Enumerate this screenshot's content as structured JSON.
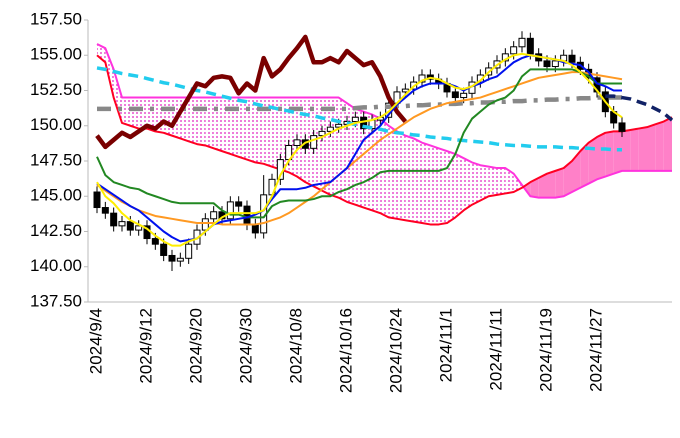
{
  "chart_data": {
    "type": "candlestick",
    "categories": [
      "2024/9/4",
      null,
      null,
      null,
      null,
      null,
      "2024/9/12",
      null,
      null,
      null,
      null,
      null,
      "2024/9/20",
      null,
      null,
      null,
      null,
      null,
      "2024/9/30",
      null,
      null,
      null,
      null,
      null,
      "2024/10/8",
      null,
      null,
      null,
      null,
      null,
      "2024/10/16",
      null,
      null,
      null,
      null,
      null,
      "2024/10/24",
      null,
      null,
      null,
      null,
      null,
      "2024/11/1",
      null,
      null,
      null,
      null,
      null,
      "2024/11/11",
      null,
      null,
      null,
      null,
      null,
      "2024/11/19",
      null,
      null,
      null,
      null,
      null,
      "2024/11/27",
      null,
      null,
      null,
      null,
      null,
      null,
      null,
      null,
      null
    ],
    "open": [
      145.3,
      144.2,
      143.8,
      142.9,
      143.2,
      142.6,
      142.9,
      142.0,
      141.6,
      140.8,
      140.4,
      140.6,
      141.6,
      142.6,
      143.4,
      143.9,
      143.4,
      144.6,
      144.3,
      143.0,
      142.4,
      145.1,
      146.2,
      147.6,
      148.6,
      149.0,
      148.4,
      149.3,
      149.6,
      149.9,
      150.1,
      150.3,
      150.6,
      149.8,
      150.4,
      150.6,
      151.6,
      152.4,
      152.6,
      153.1,
      153.6,
      153.3,
      153.0,
      152.4,
      152.0,
      152.3,
      153.1,
      153.6,
      154.1,
      154.6,
      155.1,
      155.6,
      156.2,
      155.1,
      154.6,
      154.2,
      154.6,
      155.0,
      154.5,
      154.0,
      153.4,
      152.4,
      151.0,
      150.2,
      null,
      null,
      null,
      null,
      null,
      null
    ],
    "high": [
      145.7,
      144.6,
      144.2,
      143.6,
      143.6,
      143.3,
      143.3,
      142.4,
      142.0,
      141.2,
      141.0,
      142.0,
      143.0,
      143.8,
      144.3,
      144.3,
      145.0,
      145.0,
      144.7,
      143.4,
      146.5,
      146.6,
      148.0,
      149.0,
      149.4,
      149.4,
      149.7,
      150.0,
      150.3,
      150.5,
      150.7,
      151.0,
      151.0,
      150.8,
      151.0,
      152.0,
      152.8,
      153.0,
      153.5,
      154.0,
      154.0,
      153.7,
      153.4,
      152.8,
      152.7,
      153.5,
      154.0,
      154.5,
      155.0,
      155.5,
      156.0,
      156.7,
      156.6,
      155.5,
      155.0,
      155.0,
      155.4,
      155.4,
      154.9,
      154.4,
      153.8,
      152.8,
      151.4,
      150.6,
      null,
      null,
      null,
      null,
      null,
      null
    ],
    "low": [
      143.8,
      143.4,
      142.5,
      142.5,
      142.2,
      142.2,
      141.6,
      141.2,
      140.4,
      139.7,
      140.0,
      140.2,
      141.2,
      142.2,
      143.0,
      143.0,
      143.0,
      143.9,
      142.6,
      142.0,
      142.0,
      144.7,
      145.8,
      147.2,
      148.2,
      148.0,
      148.0,
      148.9,
      149.2,
      149.5,
      149.7,
      149.9,
      149.4,
      149.4,
      150.0,
      150.2,
      151.2,
      152.0,
      152.2,
      152.7,
      152.9,
      152.6,
      152.0,
      151.6,
      151.6,
      151.9,
      152.7,
      153.2,
      153.7,
      154.2,
      154.7,
      155.2,
      154.7,
      154.2,
      153.8,
      153.8,
      154.2,
      154.1,
      153.6,
      153.0,
      152.0,
      150.6,
      149.8,
      149.2,
      null,
      null,
      null,
      null,
      null,
      null
    ],
    "close": [
      144.2,
      143.8,
      142.9,
      143.2,
      142.6,
      142.9,
      142.0,
      141.6,
      140.8,
      140.4,
      140.6,
      141.6,
      142.6,
      143.4,
      143.9,
      143.4,
      144.6,
      144.3,
      143.0,
      142.4,
      145.1,
      146.2,
      147.6,
      148.6,
      149.0,
      148.4,
      149.3,
      149.6,
      149.9,
      150.1,
      150.3,
      150.6,
      149.8,
      150.4,
      150.6,
      151.6,
      152.4,
      152.6,
      153.1,
      153.6,
      153.3,
      153.0,
      152.4,
      152.0,
      152.3,
      153.1,
      153.6,
      154.1,
      154.6,
      155.1,
      155.6,
      156.2,
      155.1,
      154.6,
      154.2,
      154.6,
      155.0,
      154.5,
      154.0,
      153.4,
      152.4,
      151.0,
      150.2,
      149.6,
      null,
      null,
      null,
      null,
      null,
      null
    ],
    "up_color": "#ffffff",
    "down_color": "#000000",
    "cloud": {
      "colors": [
        "#e020c0",
        "#ff80c8"
      ],
      "span_a": {
        "color": "#ff33dd",
        "style": "solid",
        "values": [
          155.8,
          155.5,
          154.0,
          152.0,
          152.0,
          152.0,
          152.0,
          152.0,
          152.0,
          152.0,
          152.0,
          152.0,
          152.0,
          152.0,
          152.0,
          152.0,
          152.0,
          152.0,
          152.0,
          152.0,
          152.0,
          152.0,
          152.0,
          152.0,
          152.0,
          152.0,
          152.0,
          152.0,
          152.0,
          152.0,
          151.6,
          151.2,
          151.0,
          150.8,
          150.5,
          150.0,
          149.6,
          149.3,
          149.1,
          148.8,
          148.6,
          148.4,
          148.2,
          148.0,
          147.7,
          147.4,
          147.2,
          147.1,
          147.0,
          147.0,
          146.6,
          145.8,
          145.0,
          144.9,
          144.9,
          144.9,
          145.0,
          145.3,
          145.6,
          145.9,
          146.2,
          146.4,
          146.6,
          146.8,
          146.8,
          146.8,
          146.8,
          146.8,
          146.8,
          146.8
        ]
      },
      "span_b": {
        "color": "#ff0022",
        "style": "solid",
        "values": [
          155.0,
          154.5,
          152.0,
          150.2,
          150.0,
          149.8,
          149.8,
          149.6,
          149.5,
          149.3,
          149.1,
          148.9,
          148.7,
          148.6,
          148.4,
          148.2,
          148.0,
          147.8,
          147.6,
          147.4,
          147.3,
          147.1,
          146.9,
          146.7,
          146.4,
          146.0,
          145.7,
          145.4,
          145.1,
          144.9,
          144.6,
          144.4,
          144.2,
          144.0,
          143.8,
          143.5,
          143.4,
          143.3,
          143.2,
          143.1,
          143.0,
          143.0,
          143.1,
          143.5,
          144.0,
          144.4,
          144.7,
          145.0,
          145.1,
          145.2,
          145.3,
          145.6,
          146.0,
          146.3,
          146.6,
          146.8,
          147.0,
          147.5,
          148.2,
          148.8,
          149.2,
          149.5,
          149.6,
          149.6,
          149.7,
          149.8,
          149.9,
          150.1,
          150.3,
          150.6
        ]
      }
    },
    "series": [
      {
        "color": "#888888",
        "style": "dashdot",
        "values": [
          151.2,
          151.2,
          151.2,
          151.2,
          151.2,
          151.2,
          151.2,
          151.2,
          151.2,
          151.2,
          151.2,
          151.2,
          151.2,
          151.2,
          151.2,
          151.2,
          151.2,
          151.2,
          151.2,
          151.2,
          151.2,
          151.2,
          151.2,
          151.2,
          151.2,
          151.2,
          151.2,
          151.2,
          151.2,
          151.2,
          151.2,
          151.25,
          151.3,
          151.3,
          151.35,
          151.35,
          151.4,
          151.4,
          151.45,
          151.45,
          151.5,
          151.5,
          151.55,
          151.55,
          151.6,
          151.6,
          151.65,
          151.65,
          151.7,
          151.7,
          151.75,
          151.75,
          151.8,
          151.8,
          151.85,
          151.85,
          151.9,
          151.9,
          151.95,
          151.95,
          152.0,
          152.0,
          152.0,
          152.0,
          null,
          null,
          null,
          null,
          null,
          null
        ]
      },
      {
        "color": "#22ccee",
        "style": "dashed",
        "values": [
          154.1,
          154.0,
          153.85,
          153.7,
          153.6,
          153.5,
          153.35,
          153.2,
          153.05,
          152.95,
          152.8,
          152.65,
          152.5,
          152.4,
          152.25,
          152.1,
          151.95,
          151.8,
          151.7,
          151.55,
          151.4,
          151.3,
          151.15,
          151.05,
          150.9,
          150.8,
          150.7,
          150.55,
          150.45,
          150.3,
          150.2,
          150.1,
          149.95,
          149.85,
          149.75,
          149.6,
          149.5,
          149.45,
          149.35,
          149.3,
          149.2,
          149.15,
          149.1,
          149.0,
          148.95,
          148.9,
          148.85,
          148.8,
          148.7,
          148.65,
          148.6,
          148.6,
          148.55,
          148.5,
          148.5,
          148.5,
          148.45,
          148.45,
          148.4,
          148.4,
          148.35,
          148.35,
          148.3,
          148.3,
          null,
          null,
          null,
          null,
          null,
          null
        ]
      },
      {
        "color": "#7a0000",
        "style": "thick",
        "values": [
          149.3,
          148.5,
          149.0,
          149.5,
          149.2,
          149.6,
          150.0,
          149.8,
          150.3,
          150.0,
          151.0,
          152.0,
          153.0,
          152.8,
          153.4,
          153.5,
          153.4,
          152.3,
          153.0,
          152.5,
          154.8,
          153.5,
          154.0,
          154.8,
          155.5,
          156.3,
          154.5,
          154.5,
          154.8,
          154.5,
          155.3,
          154.8,
          154.3,
          154.5,
          153.5,
          152.0,
          151.0,
          150.3,
          null,
          null,
          null,
          null,
          null,
          null,
          null,
          null,
          null,
          null,
          null,
          null,
          null,
          null,
          null,
          null,
          null,
          null,
          null,
          null,
          null,
          null,
          null,
          null,
          null,
          null,
          null,
          null,
          null,
          null,
          null,
          null
        ]
      },
      {
        "color": "#ff9922",
        "style": "solid",
        "values": [
          145.8,
          145.4,
          145.0,
          144.6,
          144.3,
          144.0,
          143.8,
          143.6,
          143.5,
          143.4,
          143.3,
          143.2,
          143.1,
          143.1,
          143.1,
          143.0,
          143.0,
          143.0,
          143.0,
          143.0,
          143.1,
          143.3,
          143.5,
          143.8,
          144.2,
          144.6,
          145.0,
          145.5,
          146.0,
          146.5,
          147.0,
          147.5,
          148.0,
          148.5,
          149.0,
          149.4,
          149.8,
          150.2,
          150.6,
          150.9,
          151.2,
          151.4,
          151.6,
          151.7,
          151.8,
          151.9,
          152.0,
          152.2,
          152.4,
          152.6,
          152.8,
          153.0,
          153.2,
          153.4,
          153.5,
          153.6,
          153.7,
          153.8,
          153.8,
          153.7,
          153.6,
          153.5,
          153.4,
          153.3,
          null,
          null,
          null,
          null,
          null,
          null
        ]
      },
      {
        "color": "#228822",
        "style": "solid",
        "values": [
          147.8,
          146.5,
          146.0,
          145.8,
          145.6,
          145.5,
          145.2,
          145.0,
          144.8,
          144.6,
          144.5,
          144.5,
          144.5,
          144.5,
          144.5,
          144.0,
          143.7,
          143.7,
          143.5,
          143.5,
          143.5,
          144.3,
          144.6,
          144.7,
          144.7,
          144.7,
          144.8,
          145.0,
          145.0,
          145.3,
          145.5,
          145.8,
          146.0,
          146.3,
          146.7,
          146.8,
          146.8,
          146.8,
          146.8,
          146.8,
          146.8,
          146.8,
          147.0,
          148.0,
          149.5,
          150.5,
          151.0,
          151.5,
          151.8,
          152.0,
          152.5,
          153.5,
          154.0,
          154.0,
          154.0,
          154.0,
          154.0,
          154.0,
          153.8,
          153.5,
          153.0,
          153.0,
          153.0,
          153.0,
          null,
          null,
          null,
          null,
          null,
          null
        ]
      },
      {
        "color": "#0011ee",
        "style": "solid",
        "values": [
          145.9,
          145.5,
          145.1,
          144.7,
          144.3,
          144.0,
          143.5,
          143.0,
          142.5,
          142.1,
          141.8,
          141.9,
          142.0,
          142.5,
          143.0,
          143.2,
          143.3,
          143.4,
          143.5,
          143.7,
          144.0,
          144.8,
          145.5,
          145.5,
          145.5,
          145.6,
          145.8,
          145.9,
          146.0,
          146.5,
          147.0,
          148.0,
          149.0,
          149.5,
          150.0,
          150.8,
          151.5,
          152.0,
          152.5,
          152.8,
          153.0,
          153.0,
          153.0,
          152.8,
          152.5,
          152.8,
          153.0,
          153.3,
          153.5,
          154.0,
          154.5,
          154.8,
          155.0,
          154.9,
          154.8,
          154.7,
          154.5,
          154.4,
          154.3,
          153.8,
          153.0,
          152.8,
          152.5,
          152.5,
          null,
          null,
          null,
          null,
          null,
          null
        ]
      },
      {
        "color": "#ffee00",
        "style": "solid",
        "values": [
          146.0,
          145.0,
          144.5,
          143.8,
          143.3,
          143.0,
          142.7,
          142.2,
          141.8,
          141.5,
          141.5,
          141.8,
          142.0,
          142.5,
          143.0,
          143.5,
          143.8,
          143.8,
          143.8,
          143.8,
          144.0,
          145.0,
          146.5,
          147.5,
          148.3,
          148.8,
          149.0,
          149.2,
          149.5,
          149.8,
          150.0,
          150.2,
          150.3,
          150.4,
          150.6,
          151.0,
          151.6,
          152.2,
          152.8,
          153.2,
          153.4,
          153.3,
          153.0,
          152.7,
          152.6,
          152.8,
          153.2,
          153.8,
          154.3,
          154.7,
          155.0,
          155.1,
          155.0,
          154.9,
          154.8,
          154.7,
          154.6,
          154.3,
          153.8,
          153.2,
          152.5,
          151.7,
          151.0,
          150.6,
          null,
          null,
          null,
          null,
          null,
          null
        ]
      },
      {
        "color": "#112266",
        "style": "dashed",
        "values": [
          null,
          null,
          null,
          null,
          null,
          null,
          null,
          null,
          null,
          null,
          null,
          null,
          null,
          null,
          null,
          null,
          null,
          null,
          null,
          null,
          null,
          null,
          null,
          null,
          null,
          null,
          null,
          null,
          null,
          null,
          null,
          null,
          null,
          null,
          null,
          null,
          null,
          null,
          null,
          null,
          null,
          null,
          null,
          null,
          null,
          null,
          null,
          null,
          null,
          null,
          null,
          null,
          null,
          null,
          null,
          null,
          null,
          null,
          null,
          null,
          null,
          152.1,
          152.1,
          152.0,
          151.9,
          151.7,
          151.5,
          151.2,
          150.9,
          150.4
        ]
      }
    ],
    "ylim": [
      137.5,
      157.5
    ],
    "yticks": [
      {
        "value": 137.5,
        "label": "137.50"
      },
      {
        "value": 140,
        "label": "140.00"
      },
      {
        "value": 142.5,
        "label": "142.50"
      },
      {
        "value": 145,
        "label": "145.00"
      },
      {
        "value": 147.5,
        "label": "147.50"
      },
      {
        "value": 150,
        "label": "150.00"
      },
      {
        "value": 152.5,
        "label": "152.50"
      },
      {
        "value": 155,
        "label": "155.00"
      },
      {
        "value": 157.5,
        "label": "157.50"
      }
    ],
    "grid": false
  }
}
